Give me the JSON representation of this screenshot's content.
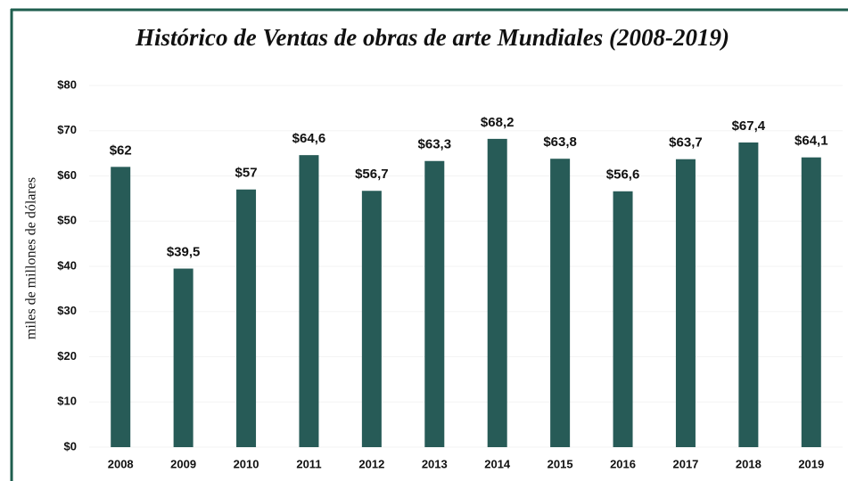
{
  "chart_data": {
    "type": "bar",
    "title": "Histórico de Ventas de obras de arte Mundiales (2008-2019)",
    "y_label": "miles de millones de dólares",
    "categories": [
      "2008",
      "2009",
      "2010",
      "2011",
      "2012",
      "2013",
      "2014",
      "2015",
      "2016",
      "2017",
      "2018",
      "2019"
    ],
    "values": [
      62,
      39.5,
      57,
      64.6,
      56.7,
      63.3,
      68.2,
      63.8,
      56.6,
      63.7,
      67.4,
      64.1
    ],
    "value_labels": [
      "$62",
      "$39,5",
      "$57",
      "$64,6",
      "$56,7",
      "$63,3",
      "$68,2",
      "$63,8",
      "$56,6",
      "$63,7",
      "$67,4",
      "$64,1"
    ],
    "color": "#275b57",
    "ylim": [
      0,
      80
    ],
    "yticks": [
      {
        "value": 0,
        "label": "$0"
      },
      {
        "value": 10,
        "label": "$10"
      },
      {
        "value": 20,
        "label": "$20"
      },
      {
        "value": 30,
        "label": "$30"
      },
      {
        "value": 40,
        "label": "$40"
      },
      {
        "value": 50,
        "label": "$50"
      },
      {
        "value": 60,
        "label": "$60"
      },
      {
        "value": 70,
        "label": "$70"
      },
      {
        "value": 80,
        "label": "$80"
      }
    ],
    "grid": true
  }
}
